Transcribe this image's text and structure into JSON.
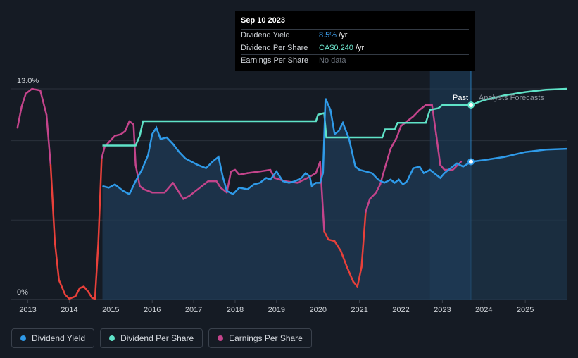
{
  "chart_data": {
    "type": "line",
    "y_axis": {
      "top_label": "13.0%",
      "bottom_label": "0%",
      "ylim": [
        0,
        13
      ]
    },
    "x_axis": {
      "range": [
        2012.6,
        2026.0
      ],
      "ticks": [
        "2013",
        "2014",
        "2015",
        "2016",
        "2017",
        "2018",
        "2019",
        "2020",
        "2021",
        "2022",
        "2023",
        "2024",
        "2025"
      ]
    },
    "past_label": "Past",
    "forecast_label": "Analysts Forecasts",
    "tooltip": {
      "date": "Sep 10 2023",
      "rows": [
        {
          "label": "Dividend Yield",
          "value": "8.5%",
          "unit": " /yr",
          "color": "#3ea0ee"
        },
        {
          "label": "Dividend Per Share",
          "value": "CA$0.240",
          "unit": " /yr",
          "color": "#6ee8cf"
        },
        {
          "label": "Earnings Per Share",
          "value": "No data",
          "unit": "",
          "color": "#6b727c"
        }
      ]
    },
    "colors": {
      "dividend_yield": "#2f9ae8",
      "dividend_per_share": "#5fe3c8",
      "earnings_per_share": "#c3448b",
      "eps_negative": "#e8403a"
    },
    "series": [
      {
        "name": "Dividend Yield",
        "points": [
          [
            2014.8,
            7.0
          ],
          [
            2014.95,
            6.9
          ],
          [
            2015.1,
            7.1
          ],
          [
            2015.3,
            6.7
          ],
          [
            2015.45,
            6.5
          ],
          [
            2015.6,
            7.3
          ],
          [
            2015.75,
            8.0
          ],
          [
            2015.9,
            8.9
          ],
          [
            2016.0,
            10.2
          ],
          [
            2016.1,
            10.6
          ],
          [
            2016.2,
            9.9
          ],
          [
            2016.35,
            10.0
          ],
          [
            2016.5,
            9.6
          ],
          [
            2016.65,
            9.1
          ],
          [
            2016.8,
            8.7
          ],
          [
            2016.95,
            8.5
          ],
          [
            2017.1,
            8.3
          ],
          [
            2017.3,
            8.1
          ],
          [
            2017.45,
            8.5
          ],
          [
            2017.6,
            8.8
          ],
          [
            2017.7,
            7.6
          ],
          [
            2017.8,
            6.7
          ],
          [
            2017.95,
            6.5
          ],
          [
            2018.1,
            6.9
          ],
          [
            2018.3,
            6.8
          ],
          [
            2018.45,
            7.1
          ],
          [
            2018.6,
            7.2
          ],
          [
            2018.75,
            7.5
          ],
          [
            2018.85,
            7.4
          ],
          [
            2019.0,
            7.9
          ],
          [
            2019.15,
            7.3
          ],
          [
            2019.3,
            7.2
          ],
          [
            2019.45,
            7.3
          ],
          [
            2019.6,
            7.5
          ],
          [
            2019.7,
            7.8
          ],
          [
            2019.8,
            7.6
          ],
          [
            2019.85,
            7.0
          ],
          [
            2019.95,
            7.2
          ],
          [
            2020.05,
            7.2
          ],
          [
            2020.12,
            7.8
          ],
          [
            2020.18,
            12.4
          ],
          [
            2020.3,
            11.7
          ],
          [
            2020.4,
            10.2
          ],
          [
            2020.5,
            10.4
          ],
          [
            2020.6,
            10.9
          ],
          [
            2020.75,
            9.9
          ],
          [
            2020.9,
            8.2
          ],
          [
            2021.0,
            8.0
          ],
          [
            2021.15,
            7.9
          ],
          [
            2021.3,
            7.8
          ],
          [
            2021.45,
            7.4
          ],
          [
            2021.6,
            7.2
          ],
          [
            2021.75,
            7.4
          ],
          [
            2021.85,
            7.2
          ],
          [
            2021.95,
            7.4
          ],
          [
            2022.05,
            7.1
          ],
          [
            2022.15,
            7.3
          ],
          [
            2022.3,
            8.1
          ],
          [
            2022.45,
            8.2
          ],
          [
            2022.55,
            7.8
          ],
          [
            2022.7,
            8.0
          ],
          [
            2022.85,
            7.7
          ],
          [
            2022.95,
            7.5
          ],
          [
            2023.05,
            7.8
          ],
          [
            2023.2,
            8.1
          ],
          [
            2023.35,
            8.4
          ],
          [
            2023.5,
            8.2
          ],
          [
            2023.69,
            8.5
          ]
        ]
      },
      {
        "name": "Dividend Per Share",
        "points": [
          [
            2014.8,
            9.5
          ],
          [
            2015.6,
            9.5
          ],
          [
            2015.7,
            10.1
          ],
          [
            2015.78,
            11.0
          ],
          [
            2019.95,
            11.0
          ],
          [
            2020.0,
            11.4
          ],
          [
            2020.15,
            11.5
          ],
          [
            2020.2,
            10.0
          ],
          [
            2020.3,
            10.0
          ],
          [
            2021.55,
            10.0
          ],
          [
            2021.62,
            10.5
          ],
          [
            2021.85,
            10.5
          ],
          [
            2021.92,
            10.9
          ],
          [
            2022.6,
            10.9
          ],
          [
            2022.7,
            11.7
          ],
          [
            2022.9,
            11.8
          ],
          [
            2023.0,
            12.0
          ],
          [
            2023.69,
            12.0
          ]
        ]
      },
      {
        "name": "Earnings Per Share",
        "points": [
          [
            2012.75,
            10.6
          ],
          [
            2012.85,
            11.9
          ],
          [
            2012.95,
            12.7
          ],
          [
            2013.1,
            13.0
          ],
          [
            2013.3,
            12.9
          ],
          [
            2013.45,
            11.4
          ],
          [
            2013.55,
            8.3
          ],
          [
            2013.65,
            3.6
          ],
          [
            2013.75,
            1.2
          ],
          [
            2013.9,
            0.3
          ],
          [
            2014.0,
            0.05
          ],
          [
            2014.15,
            0.2
          ],
          [
            2014.25,
            0.7
          ],
          [
            2014.35,
            0.8
          ],
          [
            2014.45,
            0.5
          ],
          [
            2014.55,
            0.1
          ],
          [
            2014.62,
            0.05
          ],
          [
            2014.7,
            3.5
          ],
          [
            2014.78,
            8.7
          ],
          [
            2014.85,
            9.4
          ],
          [
            2014.95,
            9.7
          ],
          [
            2015.1,
            10.1
          ],
          [
            2015.25,
            10.2
          ],
          [
            2015.35,
            10.4
          ],
          [
            2015.45,
            11.0
          ],
          [
            2015.55,
            10.8
          ],
          [
            2015.6,
            8.3
          ],
          [
            2015.7,
            7.0
          ],
          [
            2015.8,
            6.8
          ],
          [
            2016.0,
            6.6
          ],
          [
            2016.3,
            6.6
          ],
          [
            2016.5,
            7.2
          ],
          [
            2016.6,
            6.8
          ],
          [
            2016.75,
            6.2
          ],
          [
            2016.9,
            6.4
          ],
          [
            2017.0,
            6.6
          ],
          [
            2017.15,
            6.9
          ],
          [
            2017.35,
            7.3
          ],
          [
            2017.55,
            7.3
          ],
          [
            2017.65,
            6.9
          ],
          [
            2017.8,
            6.6
          ],
          [
            2017.9,
            7.9
          ],
          [
            2018.0,
            8.0
          ],
          [
            2018.1,
            7.7
          ],
          [
            2018.3,
            7.8
          ],
          [
            2018.6,
            7.9
          ],
          [
            2018.85,
            8.0
          ],
          [
            2018.95,
            7.5
          ],
          [
            2019.2,
            7.3
          ],
          [
            2019.5,
            7.2
          ],
          [
            2019.75,
            7.5
          ],
          [
            2019.95,
            7.8
          ],
          [
            2020.05,
            8.5
          ],
          [
            2020.15,
            4.2
          ],
          [
            2020.25,
            3.7
          ],
          [
            2020.4,
            3.6
          ],
          [
            2020.55,
            3.0
          ],
          [
            2020.7,
            2.0
          ],
          [
            2020.85,
            1.1
          ],
          [
            2020.95,
            0.8
          ],
          [
            2021.05,
            2.0
          ],
          [
            2021.15,
            5.4
          ],
          [
            2021.25,
            6.2
          ],
          [
            2021.4,
            6.6
          ],
          [
            2021.5,
            7.1
          ],
          [
            2021.6,
            8.0
          ],
          [
            2021.75,
            9.3
          ],
          [
            2021.9,
            10.0
          ],
          [
            2022.0,
            10.7
          ],
          [
            2022.15,
            11.0
          ],
          [
            2022.3,
            11.3
          ],
          [
            2022.45,
            11.7
          ],
          [
            2022.6,
            12.0
          ],
          [
            2022.75,
            12.0
          ],
          [
            2022.85,
            10.2
          ],
          [
            2022.95,
            8.3
          ],
          [
            2023.05,
            8.0
          ],
          [
            2023.25,
            8.0
          ],
          [
            2023.45,
            8.5
          ]
        ]
      },
      {
        "name": "Dividend Yield Forecast",
        "points": [
          [
            2023.69,
            8.5
          ],
          [
            2024.0,
            8.6
          ],
          [
            2024.5,
            8.8
          ],
          [
            2025.0,
            9.1
          ],
          [
            2025.5,
            9.25
          ],
          [
            2026.0,
            9.3
          ]
        ]
      },
      {
        "name": "Dividend Per Share Forecast",
        "points": [
          [
            2023.69,
            12.0
          ],
          [
            2024.0,
            12.3
          ],
          [
            2024.5,
            12.6
          ],
          [
            2025.0,
            12.8
          ],
          [
            2025.5,
            12.95
          ],
          [
            2026.0,
            13.0
          ]
        ]
      }
    ]
  },
  "legend": [
    {
      "label": "Dividend Yield",
      "color": "#2f9ae8"
    },
    {
      "label": "Dividend Per Share",
      "color": "#5fe3c8"
    },
    {
      "label": "Earnings Per Share",
      "color": "#c3448b"
    }
  ]
}
